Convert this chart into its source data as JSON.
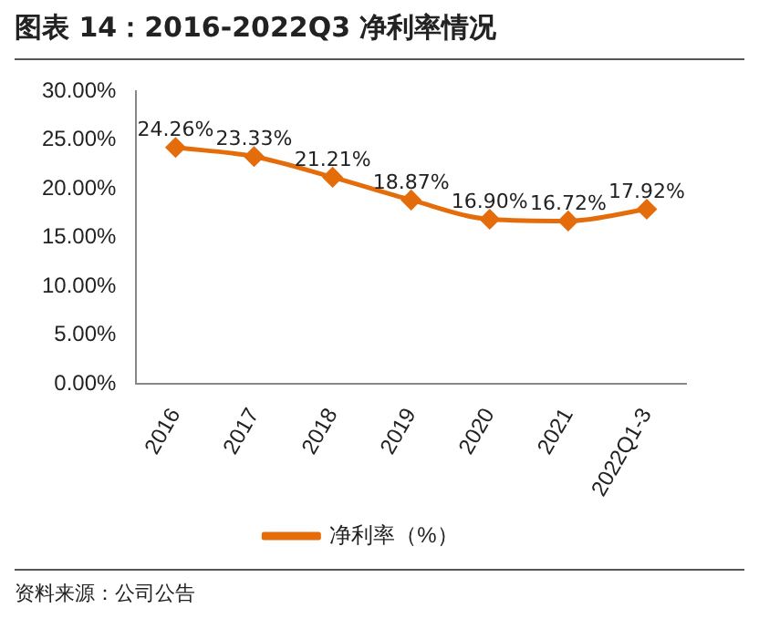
{
  "chart_data": {
    "type": "line",
    "title": "图表 14：2016-2022Q3 净利率情况",
    "categories": [
      "2016",
      "2017",
      "2018",
      "2019",
      "2020",
      "2021",
      "2022Q1-3"
    ],
    "series": [
      {
        "name": "净利率（%）",
        "color": "#e46c0a",
        "values": [
          24.26,
          23.33,
          21.21,
          18.87,
          16.9,
          16.72,
          17.92
        ],
        "value_labels": [
          "24.26%",
          "23.33%",
          "21.21%",
          "18.87%",
          "16.90%",
          "16.72%",
          "17.92%"
        ]
      }
    ],
    "ylim": [
      0,
      30
    ],
    "yticks": [
      {
        "value": 0,
        "label": "0.00%"
      },
      {
        "value": 5,
        "label": "5.00%"
      },
      {
        "value": 10,
        "label": "10.00%"
      },
      {
        "value": 15,
        "label": "15.00%"
      },
      {
        "value": 20,
        "label": "20.00%"
      },
      {
        "value": 25,
        "label": "25.00%"
      },
      {
        "value": 30,
        "label": "30.00%"
      }
    ],
    "grid": false,
    "legend": "bottom",
    "marker": "diamond",
    "line_style": "solid",
    "annotations": [
      "资料来源：公司公告"
    ]
  }
}
